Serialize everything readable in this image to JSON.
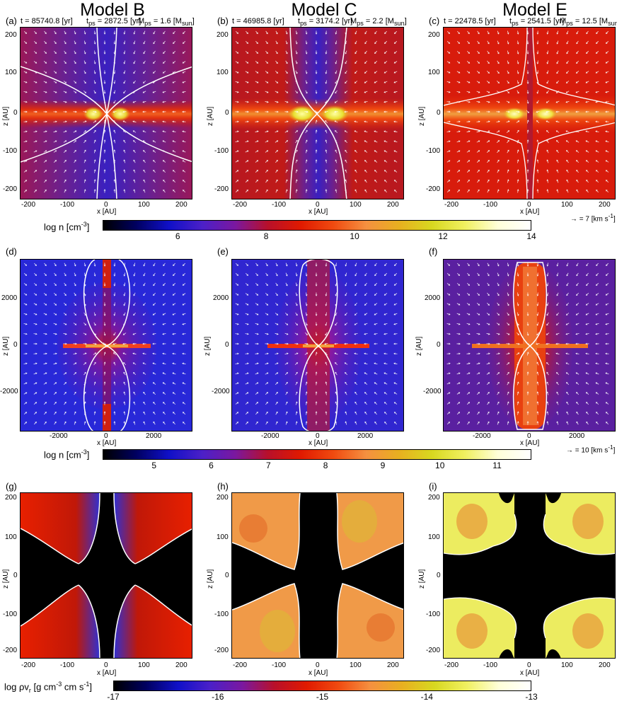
{
  "columns": [
    "Model B",
    "Model C",
    "Model E"
  ],
  "row1": {
    "panels": [
      {
        "label": "(a)",
        "time": "t = 85740.8 [yr]",
        "tps": "t",
        "tps_sub": "ps",
        "tps_val": " = 2872.5 [yr]",
        "mps": "M",
        "mps_sub": "ps",
        "mps_val": " = 1.6 [M",
        "mps_unit_sub": "sun",
        "mps_end": "]"
      },
      {
        "label": "(b)",
        "time": "t = 46985.8 [yr]",
        "tps": "t",
        "tps_sub": "ps",
        "tps_val": " = 3174.2 [yr]",
        "mps": "M",
        "mps_sub": "ps",
        "mps_val": " = 2.2 [M",
        "mps_unit_sub": "sun",
        "mps_end": "]"
      },
      {
        "label": "(c)",
        "time": "t = 22478.5 [yr]",
        "tps": "t",
        "tps_sub": "ps",
        "tps_val": " = 2541.5 [yr]",
        "mps": "M",
        "mps_sub": "ps",
        "mps_val": " = 12.5 [M",
        "mps_unit_sub": "sun",
        "mps_end": "]"
      }
    ],
    "yticks": [
      "200",
      "100",
      "0",
      "-100",
      "-200"
    ],
    "xticks": [
      "-200",
      "-100",
      "0",
      "100",
      "200"
    ],
    "xlabel": "x [AU]",
    "ylabel": "z [AU]",
    "arrow_scale": "= 7 [km s",
    "arrow_scale_sup": "-1",
    "arrow_scale_end": "]",
    "colorbar": {
      "label": "log n [cm",
      "label_sup": "-3",
      "label_end": "]",
      "ticks": [
        "6",
        "8",
        "10",
        "12",
        "14"
      ],
      "min": 4.3,
      "max": 14
    }
  },
  "row2": {
    "panels": [
      {
        "label": "(d)"
      },
      {
        "label": "(e)"
      },
      {
        "label": "(f)"
      }
    ],
    "yticks": [
      "2000",
      "0",
      "-2000"
    ],
    "xticks": [
      "-2000",
      "0",
      "2000"
    ],
    "xlabel": "x [AU]",
    "ylabel": "z [AU]",
    "arrow_scale": "= 10 [km s",
    "arrow_scale_sup": "-1",
    "arrow_scale_end": "]",
    "colorbar": {
      "label": "log n [cm",
      "label_sup": "-3",
      "label_end": "]",
      "ticks": [
        "5",
        "6",
        "7",
        "8",
        "9",
        "10",
        "11"
      ],
      "min": 4.1,
      "max": 11.6
    }
  },
  "row3": {
    "panels": [
      {
        "label": "(g)"
      },
      {
        "label": "(h)"
      },
      {
        "label": "(i)"
      }
    ],
    "yticks": [
      "200",
      "100",
      "0",
      "-100",
      "-200"
    ],
    "xticks": [
      "-200",
      "-100",
      "0",
      "100",
      "200"
    ],
    "xlabel": "x [AU]",
    "ylabel": "z [AU]",
    "colorbar": {
      "label": "log ρv",
      "label_sub": "r",
      "label_mid": " [g cm",
      "label_sup1": "-3",
      "label_mid2": " cm s",
      "label_sup2": "-1",
      "label_end": "]",
      "ticks": [
        "-17",
        "-16",
        "-15",
        "-14",
        "-13"
      ],
      "min": -17,
      "max": -13
    }
  },
  "colors": {
    "cmap": [
      "#000000",
      "#000060",
      "#1010c8",
      "#4b20c8",
      "#7a18a0",
      "#b8102a",
      "#e01a00",
      "#f04a10",
      "#f59040",
      "#e8b020",
      "#d8d820",
      "#f0f060",
      "#ffffd8",
      "#ffffff"
    ]
  }
}
